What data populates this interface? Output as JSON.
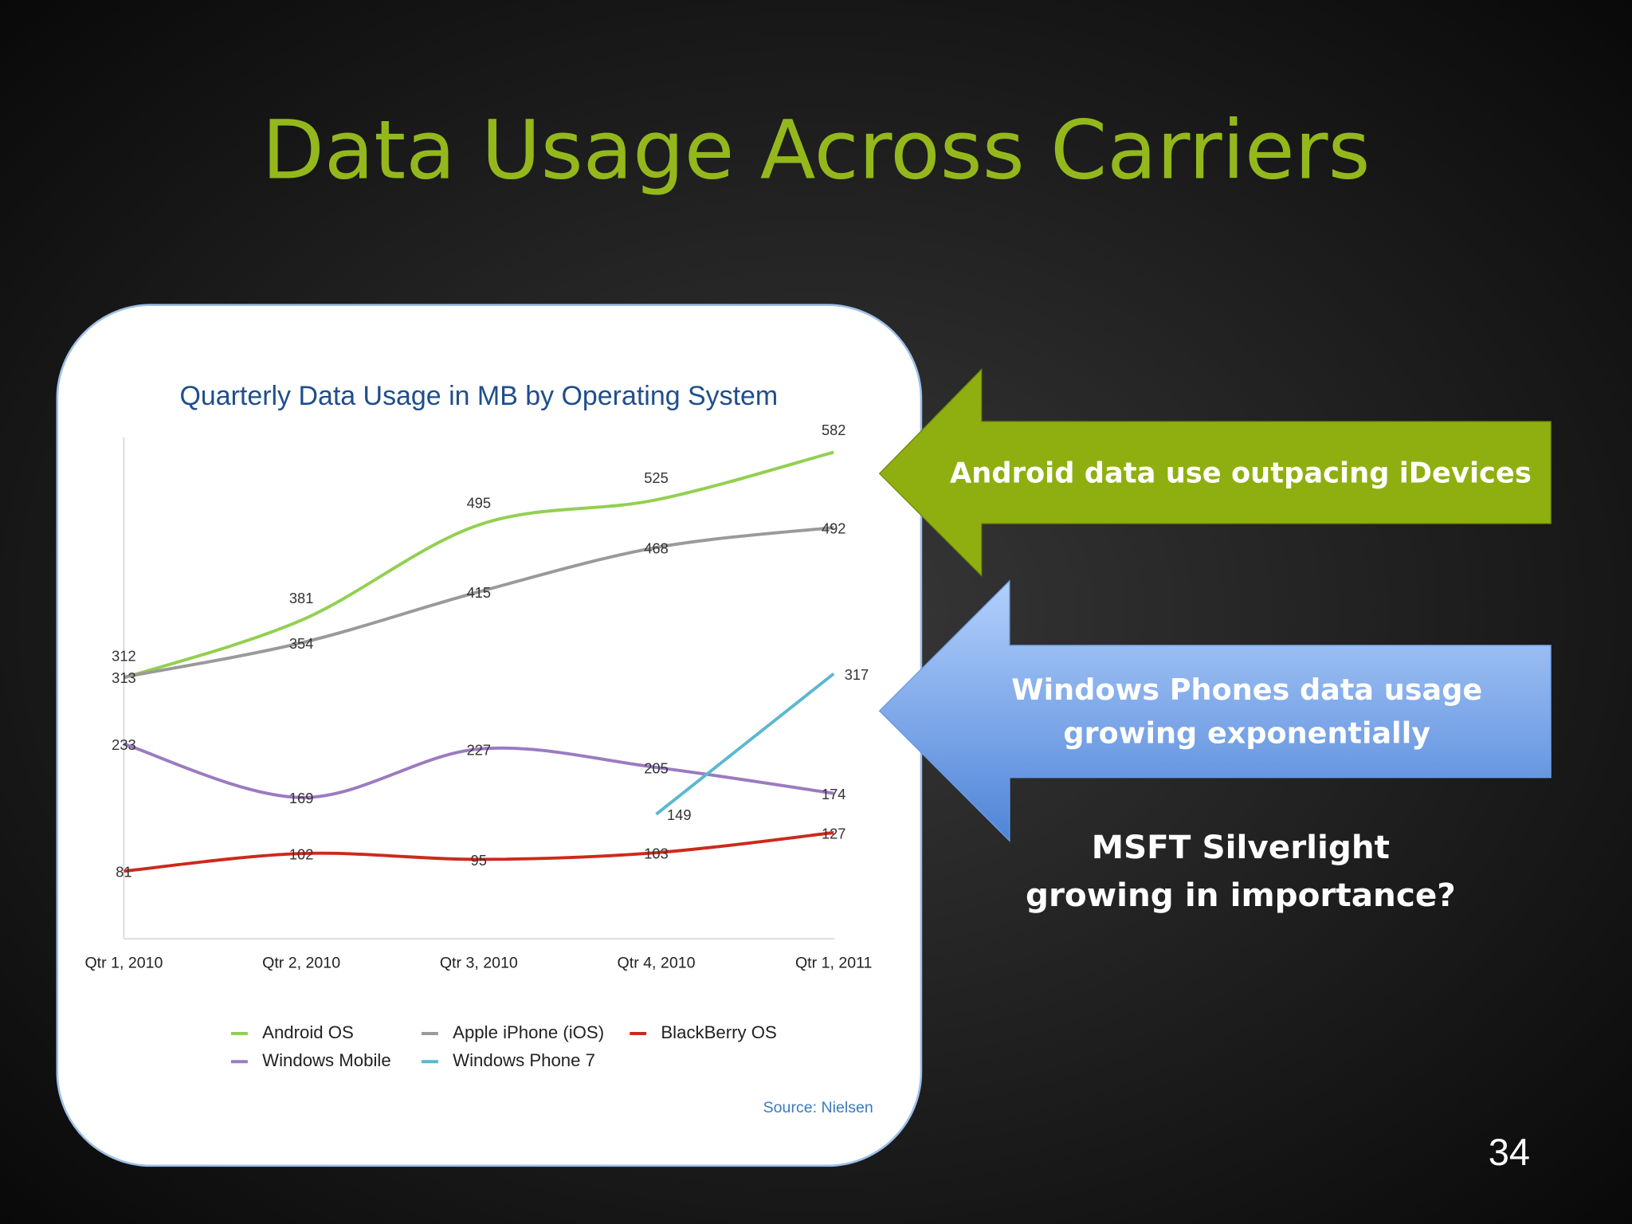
{
  "slide": {
    "title": "Data Usage Across Carriers",
    "callouts": [
      {
        "lines": [
          "Android data use outpacing iDevices"
        ]
      },
      {
        "lines": [
          "Windows Phones data usage",
          "growing exponentially"
        ]
      }
    ],
    "note": {
      "lines": [
        "MSFT Silverlight",
        "growing in importance?"
      ]
    },
    "page_number": 34
  },
  "chart_data": {
    "type": "line",
    "title": "Quarterly Data Usage in MB by Operating System",
    "categories": [
      "Qtr 1, 2010",
      "Qtr 2, 2010",
      "Qtr 3, 2010",
      "Qtr 4, 2010",
      "Qtr 1, 2011"
    ],
    "series": [
      {
        "name": "Android OS",
        "color": "#92d050",
        "values": [
          312,
          381,
          495,
          525,
          582
        ]
      },
      {
        "name": "Apple iPhone (iOS)",
        "color": "#9a9a9a",
        "values": [
          313,
          354,
          415,
          468,
          492
        ]
      },
      {
        "name": "BlackBerry OS",
        "color": "#cc2a1c",
        "values": [
          81,
          102,
          95,
          103,
          127
        ]
      },
      {
        "name": "Windows Mobile",
        "color": "#9b7bc0",
        "values": [
          233,
          169,
          227,
          205,
          174
        ]
      },
      {
        "name": "Windows Phone 7",
        "color": "#5bb8d0",
        "values": [
          null,
          null,
          null,
          149,
          317
        ]
      }
    ],
    "ylim": [
      0,
      600
    ],
    "source": "Source: Nielsen"
  }
}
